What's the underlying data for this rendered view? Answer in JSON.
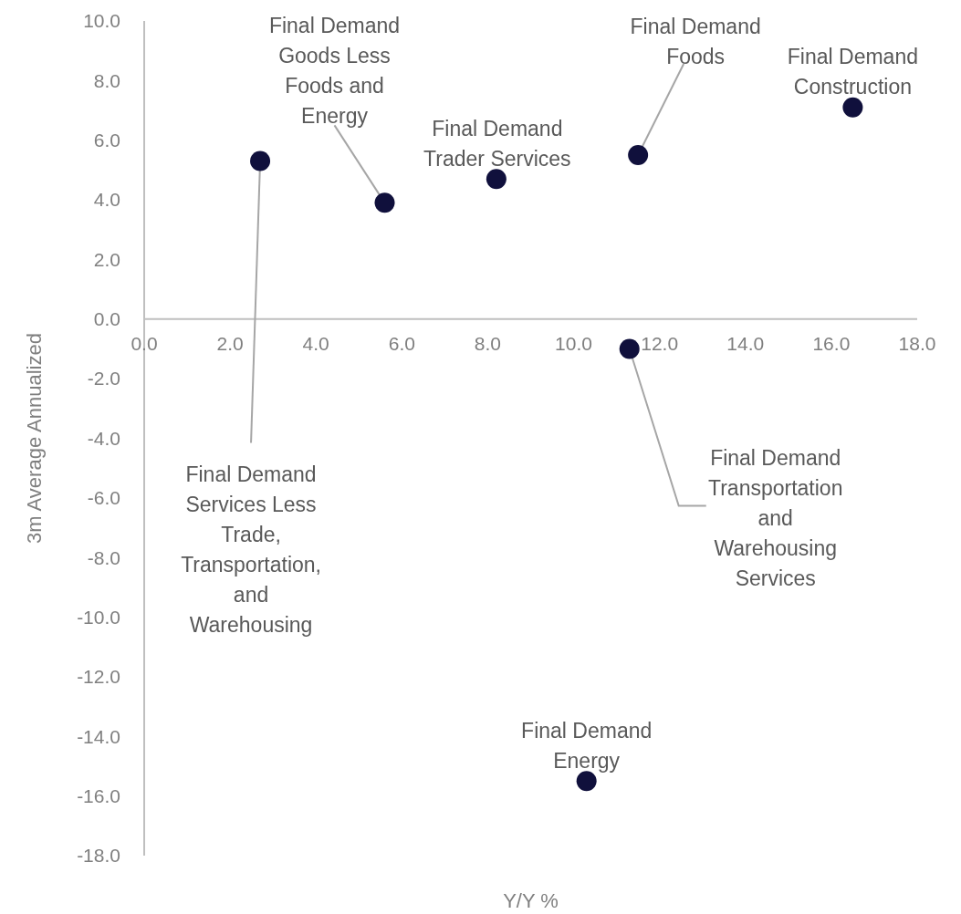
{
  "chart_data": {
    "type": "scatter",
    "xlabel": "Y/Y %",
    "ylabel": "3m Average Annualized",
    "x": [
      2.7,
      5.6,
      8.2,
      11.5,
      16.5,
      11.3,
      10.3
    ],
    "series": [
      {
        "color": "#10103c",
        "values": [
          5.3,
          3.9,
          4.7,
          5.5,
          7.1,
          -1.0,
          -15.5
        ]
      }
    ],
    "marker": "circle",
    "grid": false,
    "xlim": [
      0,
      18
    ],
    "ylim": [
      -18,
      10
    ],
    "xticks": [
      {
        "value": 0,
        "label": "0.0"
      },
      {
        "value": 2,
        "label": "2.0"
      },
      {
        "value": 4,
        "label": "4.0"
      },
      {
        "value": 6,
        "label": "6.0"
      },
      {
        "value": 8,
        "label": "8.0"
      },
      {
        "value": 10,
        "label": "10.0"
      },
      {
        "value": 12,
        "label": "12.0"
      },
      {
        "value": 14,
        "label": "14.0"
      },
      {
        "value": 16,
        "label": "16.0"
      },
      {
        "value": 18,
        "label": "18.0"
      }
    ],
    "yticks": [
      {
        "value": 10,
        "label": "10.0"
      },
      {
        "value": 8,
        "label": "8.0"
      },
      {
        "value": 6,
        "label": "6.0"
      },
      {
        "value": 4,
        "label": "4.0"
      },
      {
        "value": 2,
        "label": "2.0"
      },
      {
        "value": 0,
        "label": "0.0"
      },
      {
        "value": -2,
        "label": "-2.0"
      },
      {
        "value": -4,
        "label": "-4.0"
      },
      {
        "value": -6,
        "label": "-6.0"
      },
      {
        "value": -8,
        "label": "-8.0"
      },
      {
        "value": -10,
        "label": "-10.0"
      },
      {
        "value": -12,
        "label": "-12.0"
      },
      {
        "value": -14,
        "label": "-14.0"
      },
      {
        "value": -16,
        "label": "-16.0"
      },
      {
        "value": -18,
        "label": "-18.0"
      }
    ],
    "annotations": [
      {
        "text": "Final Demand Services Less Trade, Transportation, and Warehousing",
        "x": 2.7,
        "y": 5.3
      },
      {
        "text": "Final Demand Goods Less Foods and Energy",
        "x": 5.6,
        "y": 3.9
      },
      {
        "text": "Final Demand Trader Services",
        "x": 8.2,
        "y": 4.7
      },
      {
        "text": "Final Demand Foods",
        "x": 11.5,
        "y": 5.5
      },
      {
        "text": "Final Demand Construction",
        "x": 16.5,
        "y": 7.1
      },
      {
        "text": "Final Demand Transportation and Warehousing Services",
        "x": 11.3,
        "y": -1.0
      },
      {
        "text": "Final Demand Energy",
        "x": 10.3,
        "y": -15.5
      }
    ]
  }
}
